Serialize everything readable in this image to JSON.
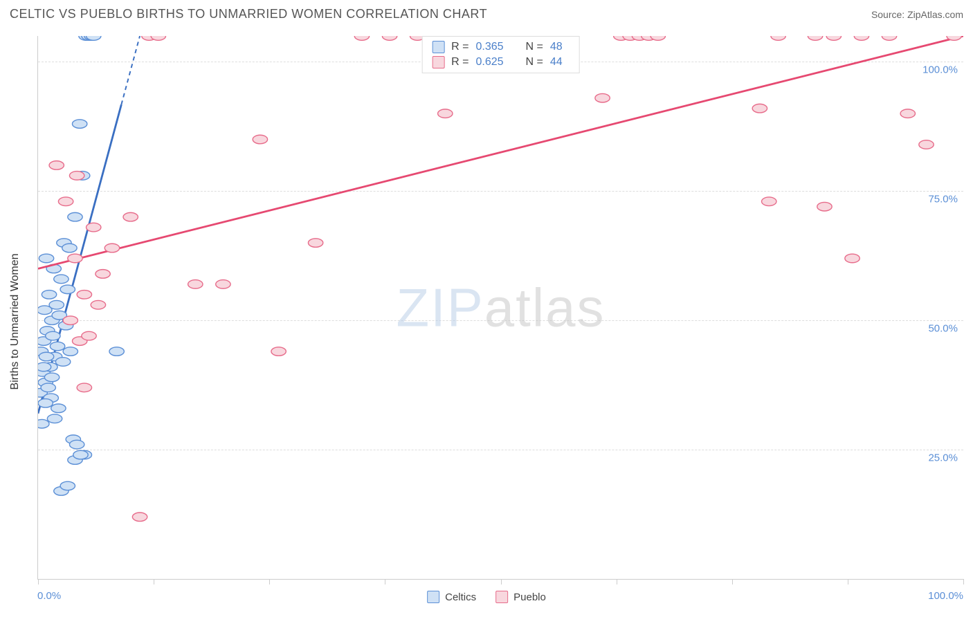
{
  "header": {
    "title": "CELTIC VS PUEBLO BIRTHS TO UNMARRIED WOMEN CORRELATION CHART",
    "source_label": "Source: ",
    "source_name": "ZipAtlas.com"
  },
  "chart": {
    "type": "scatter",
    "y_axis_title": "Births to Unmarried Women",
    "xlim": [
      0,
      100
    ],
    "ylim": [
      0,
      105
    ],
    "x_ticks": [
      0,
      12.5,
      25,
      37.5,
      50,
      62.5,
      75,
      87.5,
      100
    ],
    "y_gridlines": [
      25,
      50,
      75,
      100
    ],
    "x_tick_label_0": "0.0%",
    "x_tick_label_100": "100.0%",
    "y_tick_labels": {
      "25": "25.0%",
      "50": "50.0%",
      "75": "75.0%",
      "100": "100.0%"
    },
    "background_color": "#ffffff",
    "grid_color": "#dddddd",
    "axis_color": "#cccccc",
    "label_color": "#5b8fd6",
    "marker_radius": 8,
    "marker_stroke_width": 1.4,
    "trend_line_width": 2.8,
    "series": [
      {
        "name": "Celtics",
        "color_fill": "#cfe1f5",
        "color_stroke": "#5b8fd6",
        "trend_color": "#3a6fc2",
        "R": "0.365",
        "N": "48",
        "trend": {
          "x1": 0,
          "y1": 32,
          "x2": 11,
          "y2": 105,
          "dash_from_x": 9
        },
        "points": [
          [
            0.2,
            36
          ],
          [
            0.3,
            44
          ],
          [
            0.4,
            30
          ],
          [
            0.5,
            40
          ],
          [
            0.6,
            46
          ],
          [
            0.7,
            52
          ],
          [
            0.8,
            38
          ],
          [
            0.9,
            62
          ],
          [
            1.0,
            48
          ],
          [
            1.2,
            55
          ],
          [
            1.3,
            41
          ],
          [
            1.4,
            35
          ],
          [
            1.5,
            50
          ],
          [
            1.6,
            47
          ],
          [
            1.7,
            60
          ],
          [
            1.8,
            43
          ],
          [
            2.0,
            53
          ],
          [
            2.1,
            45
          ],
          [
            2.3,
            51
          ],
          [
            2.5,
            58
          ],
          [
            2.7,
            42
          ],
          [
            2.8,
            65
          ],
          [
            3.0,
            49
          ],
          [
            3.2,
            56
          ],
          [
            3.4,
            64
          ],
          [
            3.5,
            44
          ],
          [
            3.8,
            27
          ],
          [
            4.0,
            70
          ],
          [
            4.2,
            26
          ],
          [
            4.5,
            88
          ],
          [
            4.8,
            78
          ],
          [
            5.0,
            24
          ],
          [
            5.2,
            105
          ],
          [
            5.5,
            105
          ],
          [
            5.8,
            105
          ],
          [
            6.0,
            105
          ],
          [
            2.5,
            17
          ],
          [
            3.2,
            18
          ],
          [
            4.0,
            23
          ],
          [
            4.6,
            24
          ],
          [
            1.8,
            31
          ],
          [
            2.2,
            33
          ],
          [
            0.8,
            34
          ],
          [
            1.1,
            37
          ],
          [
            1.5,
            39
          ],
          [
            0.6,
            41
          ],
          [
            0.9,
            43
          ],
          [
            8.5,
            44
          ]
        ]
      },
      {
        "name": "Pueblo",
        "color_fill": "#f8d7de",
        "color_stroke": "#e76b8a",
        "trend_color": "#e64971",
        "R": "0.625",
        "N": "44",
        "trend": {
          "x1": 0,
          "y1": 60,
          "x2": 100,
          "y2": 105
        },
        "points": [
          [
            2,
            80
          ],
          [
            3,
            73
          ],
          [
            3.5,
            50
          ],
          [
            4,
            62
          ],
          [
            4.5,
            46
          ],
          [
            5,
            55
          ],
          [
            5.5,
            47
          ],
          [
            6,
            68
          ],
          [
            6.5,
            53
          ],
          [
            7,
            59
          ],
          [
            8,
            64
          ],
          [
            10,
            70
          ],
          [
            11,
            12
          ],
          [
            12,
            105
          ],
          [
            13,
            105
          ],
          [
            17,
            57
          ],
          [
            20,
            57
          ],
          [
            24,
            85
          ],
          [
            26,
            44
          ],
          [
            30,
            65
          ],
          [
            35,
            105
          ],
          [
            38,
            105
          ],
          [
            41,
            105
          ],
          [
            44,
            90
          ],
          [
            61,
            93
          ],
          [
            63,
            105
          ],
          [
            64,
            105
          ],
          [
            65,
            105
          ],
          [
            66,
            105
          ],
          [
            67,
            105
          ],
          [
            78,
            91
          ],
          [
            79,
            73
          ],
          [
            80,
            105
          ],
          [
            84,
            105
          ],
          [
            85,
            72
          ],
          [
            86,
            105
          ],
          [
            88,
            62
          ],
          [
            89,
            105
          ],
          [
            92,
            105
          ],
          [
            94,
            90
          ],
          [
            96,
            84
          ],
          [
            99,
            105
          ],
          [
            5,
            37
          ],
          [
            4.2,
            78
          ]
        ]
      }
    ],
    "legend_x": [
      {
        "label": "Celtics",
        "fill": "#cfe1f5",
        "stroke": "#5b8fd6"
      },
      {
        "label": "Pueblo",
        "fill": "#f8d7de",
        "stroke": "#e76b8a"
      }
    ],
    "watermark": {
      "bold": "ZIP",
      "light": "atlas"
    }
  }
}
